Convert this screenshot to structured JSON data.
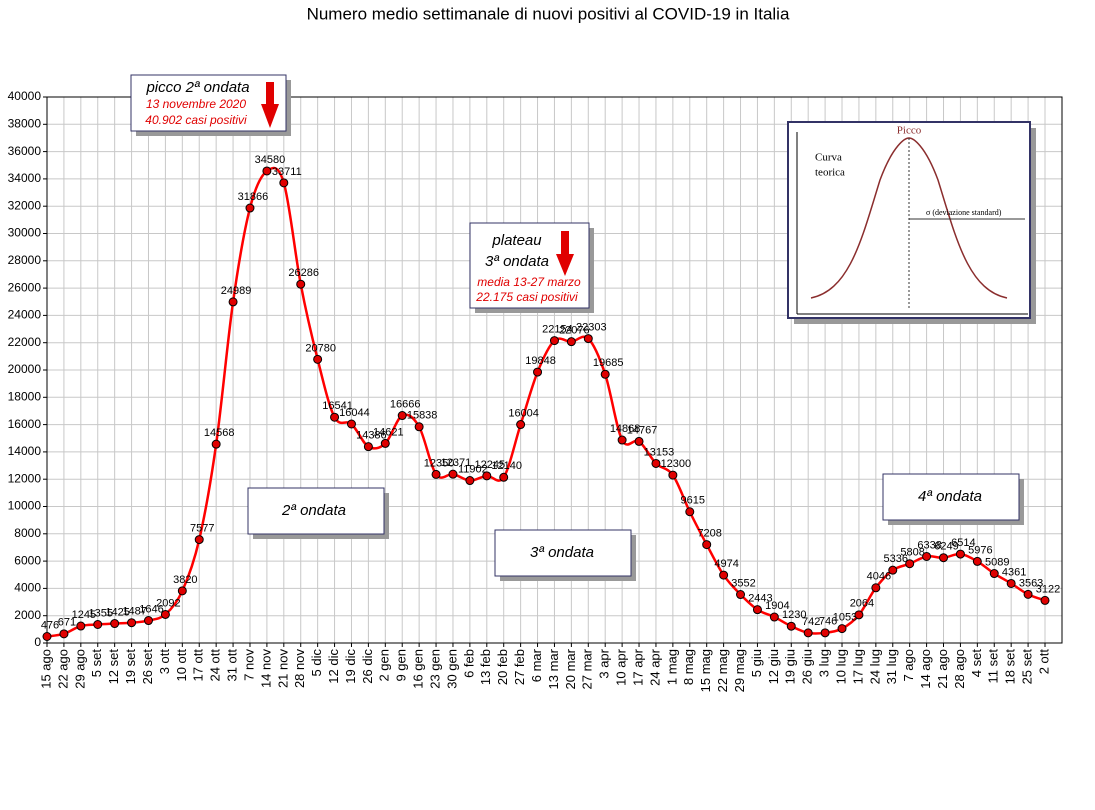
{
  "chart_data": {
    "type": "line",
    "title": "Numero medio settimanale di nuovi positivi al COVID-19 in Italia",
    "categories": [
      "15 ago",
      "22 ago",
      "29 ago",
      "5 set",
      "12 set",
      "19 set",
      "26 set",
      "3 ott",
      "10 ott",
      "17 ott",
      "24 ott",
      "31 ott",
      "7 nov",
      "14 nov",
      "21 nov",
      "28 nov",
      "5 dic",
      "12 dic",
      "19 dic",
      "26 dic",
      "2 gen",
      "9 gen",
      "16 gen",
      "23 gen",
      "30 gen",
      "6 feb",
      "13 feb",
      "20 feb",
      "27 feb",
      "6 mar",
      "13 mar",
      "20 mar",
      "27 mar",
      "3 apr",
      "10 apr",
      "17 apr",
      "24 apr",
      "1 mag",
      "8 mag",
      "15 mag",
      "22 mag",
      "29 mag",
      "5 giu",
      "12 giu",
      "19 giu",
      "26 giu",
      "3 lug",
      "10 lug",
      "17 lug",
      "24 lug",
      "31 lug",
      "7 ago",
      "14 ago",
      "21 ago",
      "28 ago",
      "4 set",
      "11 set",
      "18 set",
      "25 set",
      "2 ott"
    ],
    "series": [
      {
        "name": "Nuovi positivi",
        "color": "#ff0000",
        "values": [
          476,
          671,
          1245,
          1355,
          1425,
          1487,
          1646,
          2092,
          3820,
          7577,
          14568,
          24989,
          31866,
          34580,
          33711,
          26286,
          20780,
          16541,
          16044,
          14386,
          14621,
          16666,
          15838,
          12350,
          12371,
          11902,
          12245,
          12140,
          16004,
          19848,
          22154,
          22076,
          22303,
          19685,
          14868,
          14767,
          13153,
          12300,
          9615,
          7208,
          4974,
          3552,
          2443,
          1904,
          1230,
          742,
          746,
          1053,
          2064,
          4046,
          5336,
          5808,
          6338,
          6249,
          6514,
          5976,
          5089,
          4361,
          3563,
          3122
        ]
      }
    ],
    "ylim": [
      0,
      40000
    ],
    "yticks": [
      0,
      2000,
      4000,
      6000,
      8000,
      10000,
      12000,
      14000,
      16000,
      18000,
      20000,
      22000,
      24000,
      26000,
      28000,
      30000,
      32000,
      34000,
      36000,
      38000,
      40000
    ],
    "grid": true,
    "annotations": {
      "peak": {
        "title": "picco 2ª ondata",
        "date": "13 novembre 2020",
        "cases": "40.902 casi positivi"
      },
      "plateau": {
        "title": "plateau",
        "subtitle": "3ª ondata",
        "date": "media 13-27 marzo",
        "cases": "22.175 casi positivi"
      },
      "wave2": "2ª ondata",
      "wave3": "3ª ondata",
      "wave4": "4ª ondata",
      "inset": {
        "peak": "Picco",
        "curve": [
          "Curva",
          "teorica"
        ],
        "sigma": "σ (deviazione standard)"
      }
    }
  }
}
